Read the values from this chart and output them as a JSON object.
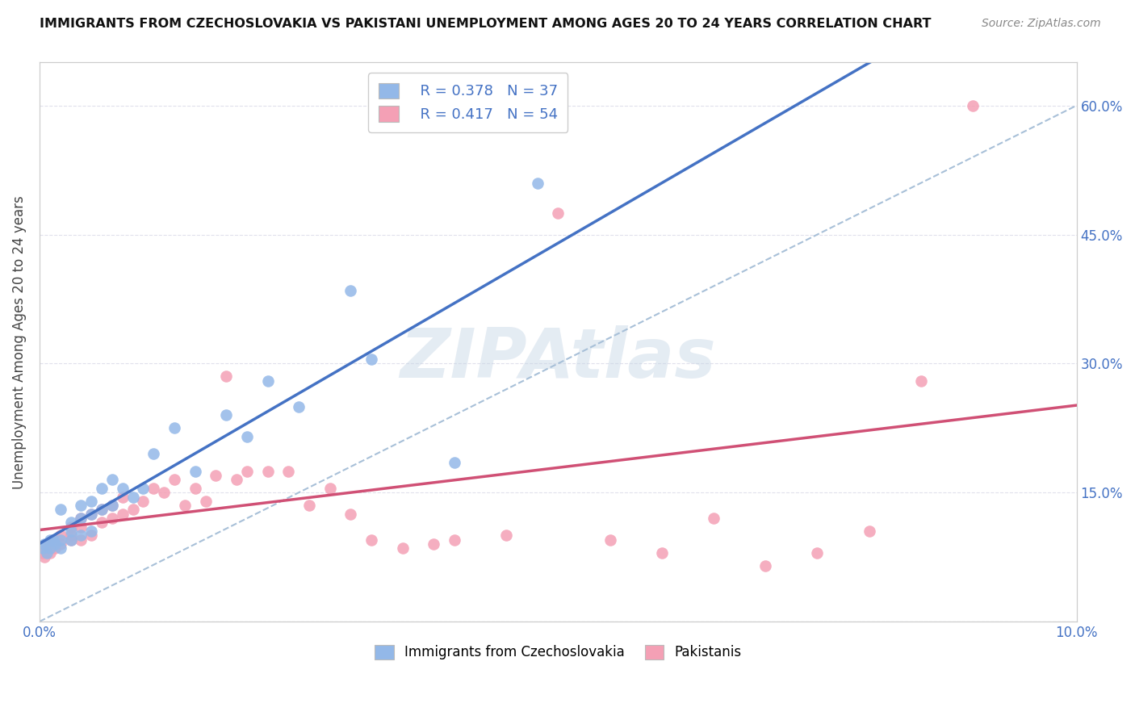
{
  "title": "IMMIGRANTS FROM CZECHOSLOVAKIA VS PAKISTANI UNEMPLOYMENT AMONG AGES 20 TO 24 YEARS CORRELATION CHART",
  "source": "Source: ZipAtlas.com",
  "ylabel": "Unemployment Among Ages 20 to 24 years",
  "xmin": 0.0,
  "xmax": 0.1,
  "ymin": 0.0,
  "ymax": 0.65,
  "xticks": [
    0.0,
    0.02,
    0.04,
    0.06,
    0.08,
    0.1
  ],
  "xtick_labels": [
    "0.0%",
    "",
    "",
    "",
    "",
    "10.0%"
  ],
  "yticks": [
    0.0,
    0.15,
    0.3,
    0.45,
    0.6
  ],
  "right_ytick_labels": [
    "",
    "15.0%",
    "30.0%",
    "45.0%",
    "60.0%"
  ],
  "legend_R1": "R = 0.378",
  "legend_N1": "N = 37",
  "legend_R2": "R = 0.417",
  "legend_N2": "N = 54",
  "blue_dot_color": "#93b8e8",
  "pink_dot_color": "#f4a0b5",
  "blue_line_color": "#4472c4",
  "pink_line_color": "#d05075",
  "dashed_line_color": "#a8c0d8",
  "axis_label_color": "#4472c4",
  "watermark": "ZIPAtlas",
  "background_color": "#ffffff",
  "grid_color": "#e0e0ec",
  "czech_x": [
    0.0003,
    0.0005,
    0.0007,
    0.001,
    0.001,
    0.0013,
    0.0015,
    0.002,
    0.002,
    0.002,
    0.003,
    0.003,
    0.003,
    0.004,
    0.004,
    0.004,
    0.005,
    0.005,
    0.005,
    0.006,
    0.006,
    0.007,
    0.007,
    0.008,
    0.009,
    0.01,
    0.011,
    0.013,
    0.015,
    0.018,
    0.02,
    0.022,
    0.025,
    0.03,
    0.032,
    0.04,
    0.048
  ],
  "czech_y": [
    0.085,
    0.09,
    0.08,
    0.085,
    0.095,
    0.095,
    0.09,
    0.085,
    0.095,
    0.13,
    0.095,
    0.105,
    0.115,
    0.1,
    0.12,
    0.135,
    0.105,
    0.125,
    0.14,
    0.13,
    0.155,
    0.135,
    0.165,
    0.155,
    0.145,
    0.155,
    0.195,
    0.225,
    0.175,
    0.24,
    0.215,
    0.28,
    0.25,
    0.385,
    0.305,
    0.185,
    0.51
  ],
  "pak_x": [
    0.0003,
    0.0005,
    0.0007,
    0.001,
    0.001,
    0.0013,
    0.0015,
    0.002,
    0.002,
    0.003,
    0.003,
    0.003,
    0.004,
    0.004,
    0.004,
    0.005,
    0.005,
    0.006,
    0.006,
    0.007,
    0.007,
    0.008,
    0.008,
    0.009,
    0.01,
    0.011,
    0.012,
    0.013,
    0.014,
    0.015,
    0.016,
    0.017,
    0.018,
    0.019,
    0.02,
    0.022,
    0.024,
    0.026,
    0.028,
    0.03,
    0.032,
    0.035,
    0.038,
    0.04,
    0.045,
    0.05,
    0.055,
    0.06,
    0.065,
    0.07,
    0.075,
    0.08,
    0.085,
    0.09
  ],
  "pak_y": [
    0.08,
    0.075,
    0.085,
    0.08,
    0.09,
    0.095,
    0.085,
    0.09,
    0.1,
    0.095,
    0.11,
    0.1,
    0.095,
    0.11,
    0.12,
    0.1,
    0.125,
    0.115,
    0.13,
    0.12,
    0.135,
    0.125,
    0.145,
    0.13,
    0.14,
    0.155,
    0.15,
    0.165,
    0.135,
    0.155,
    0.14,
    0.17,
    0.285,
    0.165,
    0.175,
    0.175,
    0.175,
    0.135,
    0.155,
    0.125,
    0.095,
    0.085,
    0.09,
    0.095,
    0.1,
    0.475,
    0.095,
    0.08,
    0.12,
    0.065,
    0.08,
    0.105,
    0.28,
    0.6
  ]
}
